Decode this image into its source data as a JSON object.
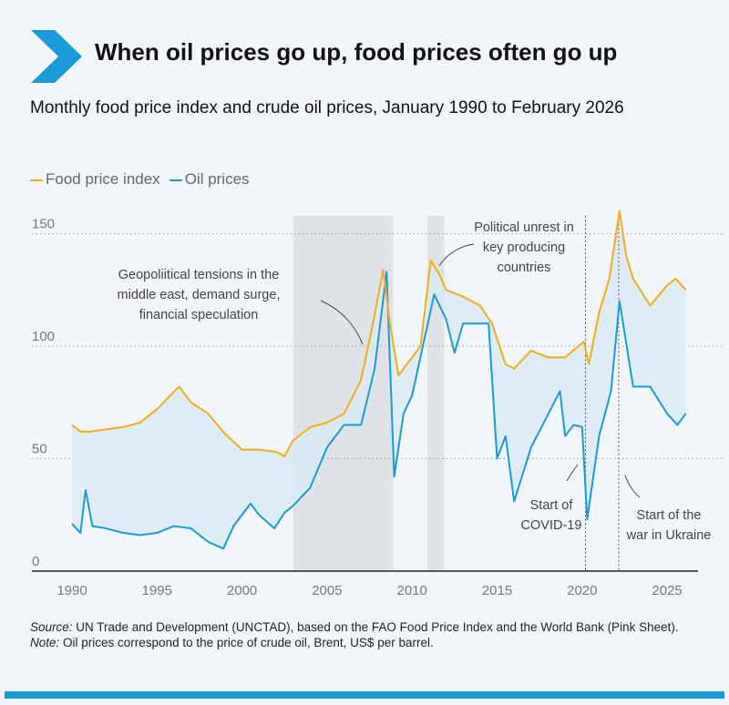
{
  "title": "When oil prices go up, food prices often go up",
  "subtitle": "Monthly food price index and crude oil prices, January 1990 to February 2026",
  "legend": {
    "food": "Food price index",
    "oil": "Oil prices"
  },
  "colors": {
    "food": "#f0ad1c",
    "oil": "#1a9ad6",
    "fill": "#dbeaf5",
    "shade": "#dfe2e6",
    "brand": "#1a9ad6"
  },
  "chart_data": {
    "type": "line",
    "title": "Monthly food price index and crude oil prices, January 1990 to February 2026",
    "xlim": [
      1988.9,
      2026.7
    ],
    "ylim": [
      0,
      160
    ],
    "yticks": [
      0,
      50,
      100,
      150
    ],
    "ytick_labels": [
      "0",
      "50",
      "100",
      "150"
    ],
    "xticks": [
      1990,
      1995,
      2000,
      2005,
      2010,
      2015,
      2020,
      2025
    ],
    "xtick_labels": [
      "1990",
      "1995",
      "2000",
      "2005",
      "2010",
      "2015",
      "2020",
      "2025"
    ],
    "shaded_periods": [
      [
        2003,
        2008.9
      ],
      [
        2010.9,
        2011.9
      ]
    ],
    "event_lines": [
      2020.2,
      2022.15
    ],
    "series": [
      {
        "name": "Food price index",
        "x": [
          1990,
          1990.5,
          1991,
          1992,
          1993,
          1994,
          1995,
          1996.3,
          1997,
          1998,
          1999,
          2000,
          2001,
          2002,
          2002.5,
          2003,
          2004,
          2005,
          2006,
          2007,
          2007.7,
          2008.3,
          2008.7,
          2009.2,
          2010,
          2010.5,
          2011.1,
          2011.6,
          2012,
          2013,
          2014,
          2014.7,
          2015.5,
          2016,
          2017,
          2018,
          2019,
          2020.1,
          2020.4,
          2021,
          2021.6,
          2022.2,
          2022.6,
          2023,
          2024,
          2025,
          2025.5,
          2026.1
        ],
        "y": [
          65,
          62,
          62,
          63,
          64,
          66,
          72,
          82,
          75,
          70,
          61,
          54,
          54,
          53,
          51,
          58,
          64,
          66,
          70,
          85,
          110,
          134,
          110,
          87,
          95,
          100,
          138,
          132,
          125,
          122,
          118,
          110,
          92,
          90,
          98,
          95,
          95,
          102,
          92,
          115,
          130,
          160,
          140,
          130,
          118,
          127,
          130,
          125
        ]
      },
      {
        "name": "Oil prices",
        "x": [
          1990,
          1990.5,
          1990.8,
          1991.2,
          1992,
          1993,
          1994,
          1995,
          1996,
          1997,
          1998,
          1998.9,
          1999.5,
          2000.5,
          2001,
          2001.9,
          2002.5,
          2003,
          2004,
          2005,
          2006,
          2007,
          2007.8,
          2008.5,
          2008.95,
          2009.5,
          2010,
          2011.3,
          2012,
          2012.5,
          2013,
          2014.5,
          2015,
          2015.5,
          2016,
          2017,
          2018.7,
          2019,
          2019.5,
          2020.0,
          2020.3,
          2021,
          2021.7,
          2022.2,
          2023,
          2024,
          2025,
          2025.6,
          2026.1
        ],
        "y": [
          21,
          17,
          36,
          20,
          19,
          17,
          16,
          17,
          20,
          19,
          13,
          10,
          20,
          30,
          25,
          19,
          26,
          29,
          37,
          55,
          65,
          65,
          90,
          133,
          42,
          70,
          78,
          123,
          112,
          97,
          110,
          110,
          50,
          60,
          31,
          55,
          80,
          60,
          65,
          64,
          23,
          60,
          80,
          120,
          82,
          82,
          70,
          65,
          70
        ]
      }
    ],
    "annotations": [
      {
        "lines": [
          "Geopoliitical tensions in the",
          "middle east, demand surge,",
          "financial speculation"
        ]
      },
      {
        "lines": [
          "Political unrest in",
          "key producing",
          "countries"
        ]
      },
      {
        "lines": [
          "Start of",
          "COVID-19"
        ]
      },
      {
        "lines": [
          "Start of the",
          "war in Ukraine"
        ]
      }
    ]
  },
  "footer": {
    "source_label": "Source:",
    "source_text": " UN Trade and Development (UNCTAD), based on the FAO Food Price Index and the World Bank (Pink Sheet).",
    "note_label": "Note:",
    "note_text": " Oil prices correspond to the price of crude oil, Brent, US$ per barrel."
  }
}
